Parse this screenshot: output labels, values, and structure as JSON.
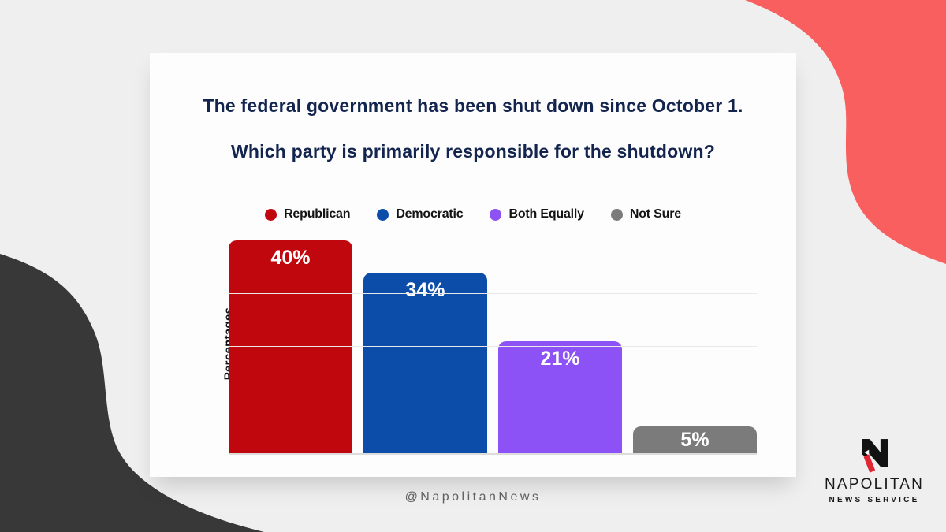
{
  "page": {
    "background_color": "#efefef",
    "handle": "@NapolitanNews"
  },
  "decor": {
    "coral_blob_color": "#f95f5f",
    "dark_blob_color": "#383838"
  },
  "card": {
    "title_line1": "The federal government has been shut down since October 1.",
    "title_line2": "Which party is primarily responsible for the shutdown?",
    "title_color": "#13254e",
    "background": "#fdfdfd"
  },
  "chart_data": {
    "type": "bar",
    "categories": [
      "Republican",
      "Democratic",
      "Both Equally",
      "Not Sure"
    ],
    "values": [
      40,
      34,
      21,
      5
    ],
    "data_labels": [
      "40%",
      "34%",
      "21%",
      "5%"
    ],
    "bar_colors": [
      "#c1070e",
      "#0b4da8",
      "#8c52f5",
      "#7b7b7b"
    ],
    "title": "Which party is primarily responsible for the shutdown?",
    "xlabel": "",
    "ylabel": "Percentages",
    "ylim": [
      0,
      42
    ],
    "gridlines_percent": [
      10,
      20,
      30,
      40
    ],
    "grid": true,
    "legend_position": "top",
    "legend_entries": [
      "Republican",
      "Democratic",
      "Both Equally",
      "Not Sure"
    ]
  },
  "logo": {
    "name": "NAPOLITAN",
    "subtitle": "NEWS SERVICE",
    "accent_color": "#e02733",
    "mark_color": "#121212"
  }
}
